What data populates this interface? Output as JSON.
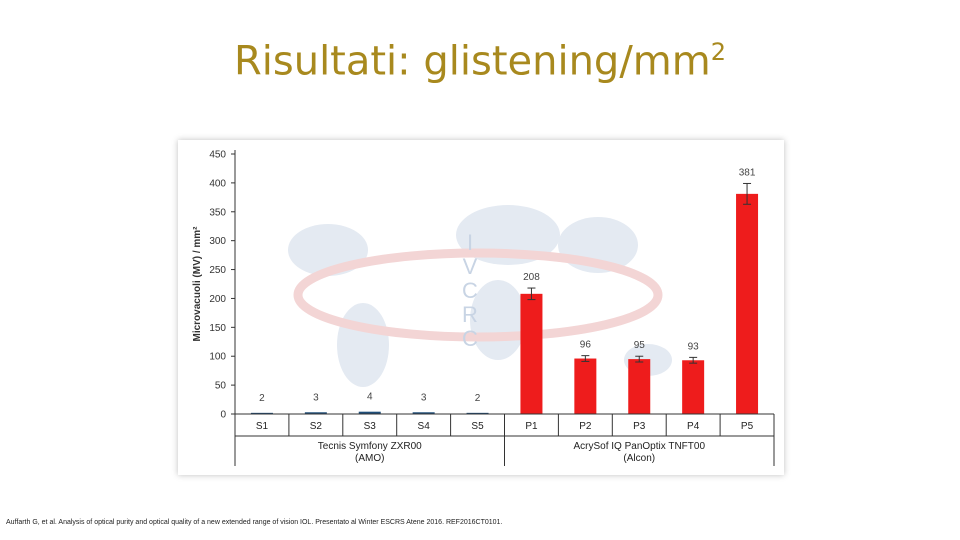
{
  "slide": {
    "title": "Risultati: glistening/mm",
    "title_sup": "2",
    "citation": "Auffarth G, et al. Analysis of optical purity and optical quality of a new extended range of vision IOL. Presentato al Winter ESCRS Atene 2016. REF2016CT0101."
  },
  "colors": {
    "title": "#a8891e",
    "series_a": "#1f4e79",
    "series_b": "#ee1c1c",
    "watermark": "#c8d4e4"
  },
  "watermark": {
    "letters": [
      "I",
      "V",
      "C",
      "R",
      "C"
    ]
  },
  "chart_data": {
    "type": "bar",
    "ylabel": "Microvacuoli (MV) / mm²",
    "ylim": [
      0,
      450
    ],
    "yticks": [
      0,
      50,
      100,
      150,
      200,
      250,
      300,
      350,
      400,
      450
    ],
    "categories": [
      "S1",
      "S2",
      "S3",
      "S4",
      "S5",
      "P1",
      "P2",
      "P3",
      "P4",
      "P5"
    ],
    "values": [
      2,
      3,
      4,
      3,
      2,
      208,
      96,
      95,
      93,
      381
    ],
    "errors": [
      0,
      0,
      0,
      0,
      0,
      10,
      5,
      5,
      5,
      18
    ],
    "bar_colors": [
      "#1f4e79",
      "#1f4e79",
      "#1f4e79",
      "#1f4e79",
      "#1f4e79",
      "#ee1c1c",
      "#ee1c1c",
      "#ee1c1c",
      "#ee1c1c",
      "#ee1c1c"
    ],
    "groups": [
      {
        "name": "Tecnis Symfony ZXR00",
        "sub": "(AMO)",
        "start": 0,
        "end": 4
      },
      {
        "name": "AcrySof IQ PanOptix TNFT00",
        "sub": "(Alcon)",
        "start": 5,
        "end": 9
      }
    ],
    "grid": false,
    "legend": "none"
  }
}
